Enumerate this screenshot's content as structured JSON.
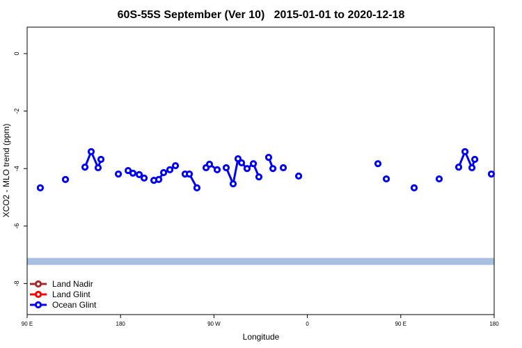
{
  "chart_data": {
    "type": "line",
    "title": "60S-55S September (Ver 10)   2015-01-01 to 2020-12-18",
    "x_label": "Longitude",
    "y_label": "XCO2 - MLO trend (ppm)",
    "xlim": [
      90,
      540
    ],
    "ylim": [
      -9.08,
      0.92
    ],
    "xticks": [
      {
        "value": 90,
        "label": "90 E"
      },
      {
        "value": 180,
        "label": "180"
      },
      {
        "value": 270,
        "label": "90 W"
      },
      {
        "value": 360,
        "label": "0"
      },
      {
        "value": 450,
        "label": "90 E"
      },
      {
        "value": 540,
        "label": "180"
      }
    ],
    "yticks": [
      0,
      -2,
      -4,
      -6,
      -8
    ],
    "hline": {
      "value": -7.23,
      "color": "#a7bfe0"
    },
    "legend": "bottom-left",
    "series": [
      {
        "name": "Land Nadir",
        "color": "#a52a2a",
        "x": [],
        "values": []
      },
      {
        "name": "Land Glint",
        "color": "#ff0000",
        "x": [],
        "values": []
      },
      {
        "name": "Ocean Glint",
        "color": "#0000ff",
        "x": [
          102.7,
          null,
          126.9,
          null,
          145.7,
          151.7,
          158.4,
          161.1,
          null,
          177.9,
          null,
          187.3,
          191.9,
          198,
          202.7,
          null,
          212.1,
          216.8,
          221.5,
          227.5,
          232.9,
          null,
          242.2,
          246.3,
          253.6,
          null,
          262.4,
          265.7,
          273.1,
          null,
          281.8,
          288.5,
          293.2,
          296.6,
          301.9,
          308,
          313.3,
          null,
          322.7,
          326.8,
          null,
          336.8,
          null,
          351.6,
          null,
          428,
          null,
          436.1,
          null,
          462.9,
          null,
          487,
          null,
          505.8,
          511.9,
          518.6,
          521.3,
          null,
          537.3
        ],
        "values": [
          -4.67,
          null,
          -4.38,
          null,
          -3.95,
          -3.41,
          -3.97,
          -3.68,
          null,
          -4.19,
          null,
          -4.07,
          -4.16,
          -4.21,
          -4.33,
          null,
          -4.41,
          -4.38,
          -4.14,
          -4.04,
          -3.9,
          null,
          -4.19,
          -4.19,
          -4.67,
          null,
          -3.97,
          -3.85,
          -4.04,
          null,
          -3.97,
          -4.53,
          -3.66,
          -3.8,
          -4.0,
          -3.83,
          -4.29,
          null,
          -3.61,
          -4.0,
          null,
          -3.97,
          null,
          -4.26,
          null,
          -3.83,
          null,
          -4.36,
          null,
          -4.67,
          null,
          -4.36,
          null,
          -3.95,
          -3.41,
          -3.97,
          -3.68,
          null,
          -4.19
        ]
      }
    ]
  }
}
